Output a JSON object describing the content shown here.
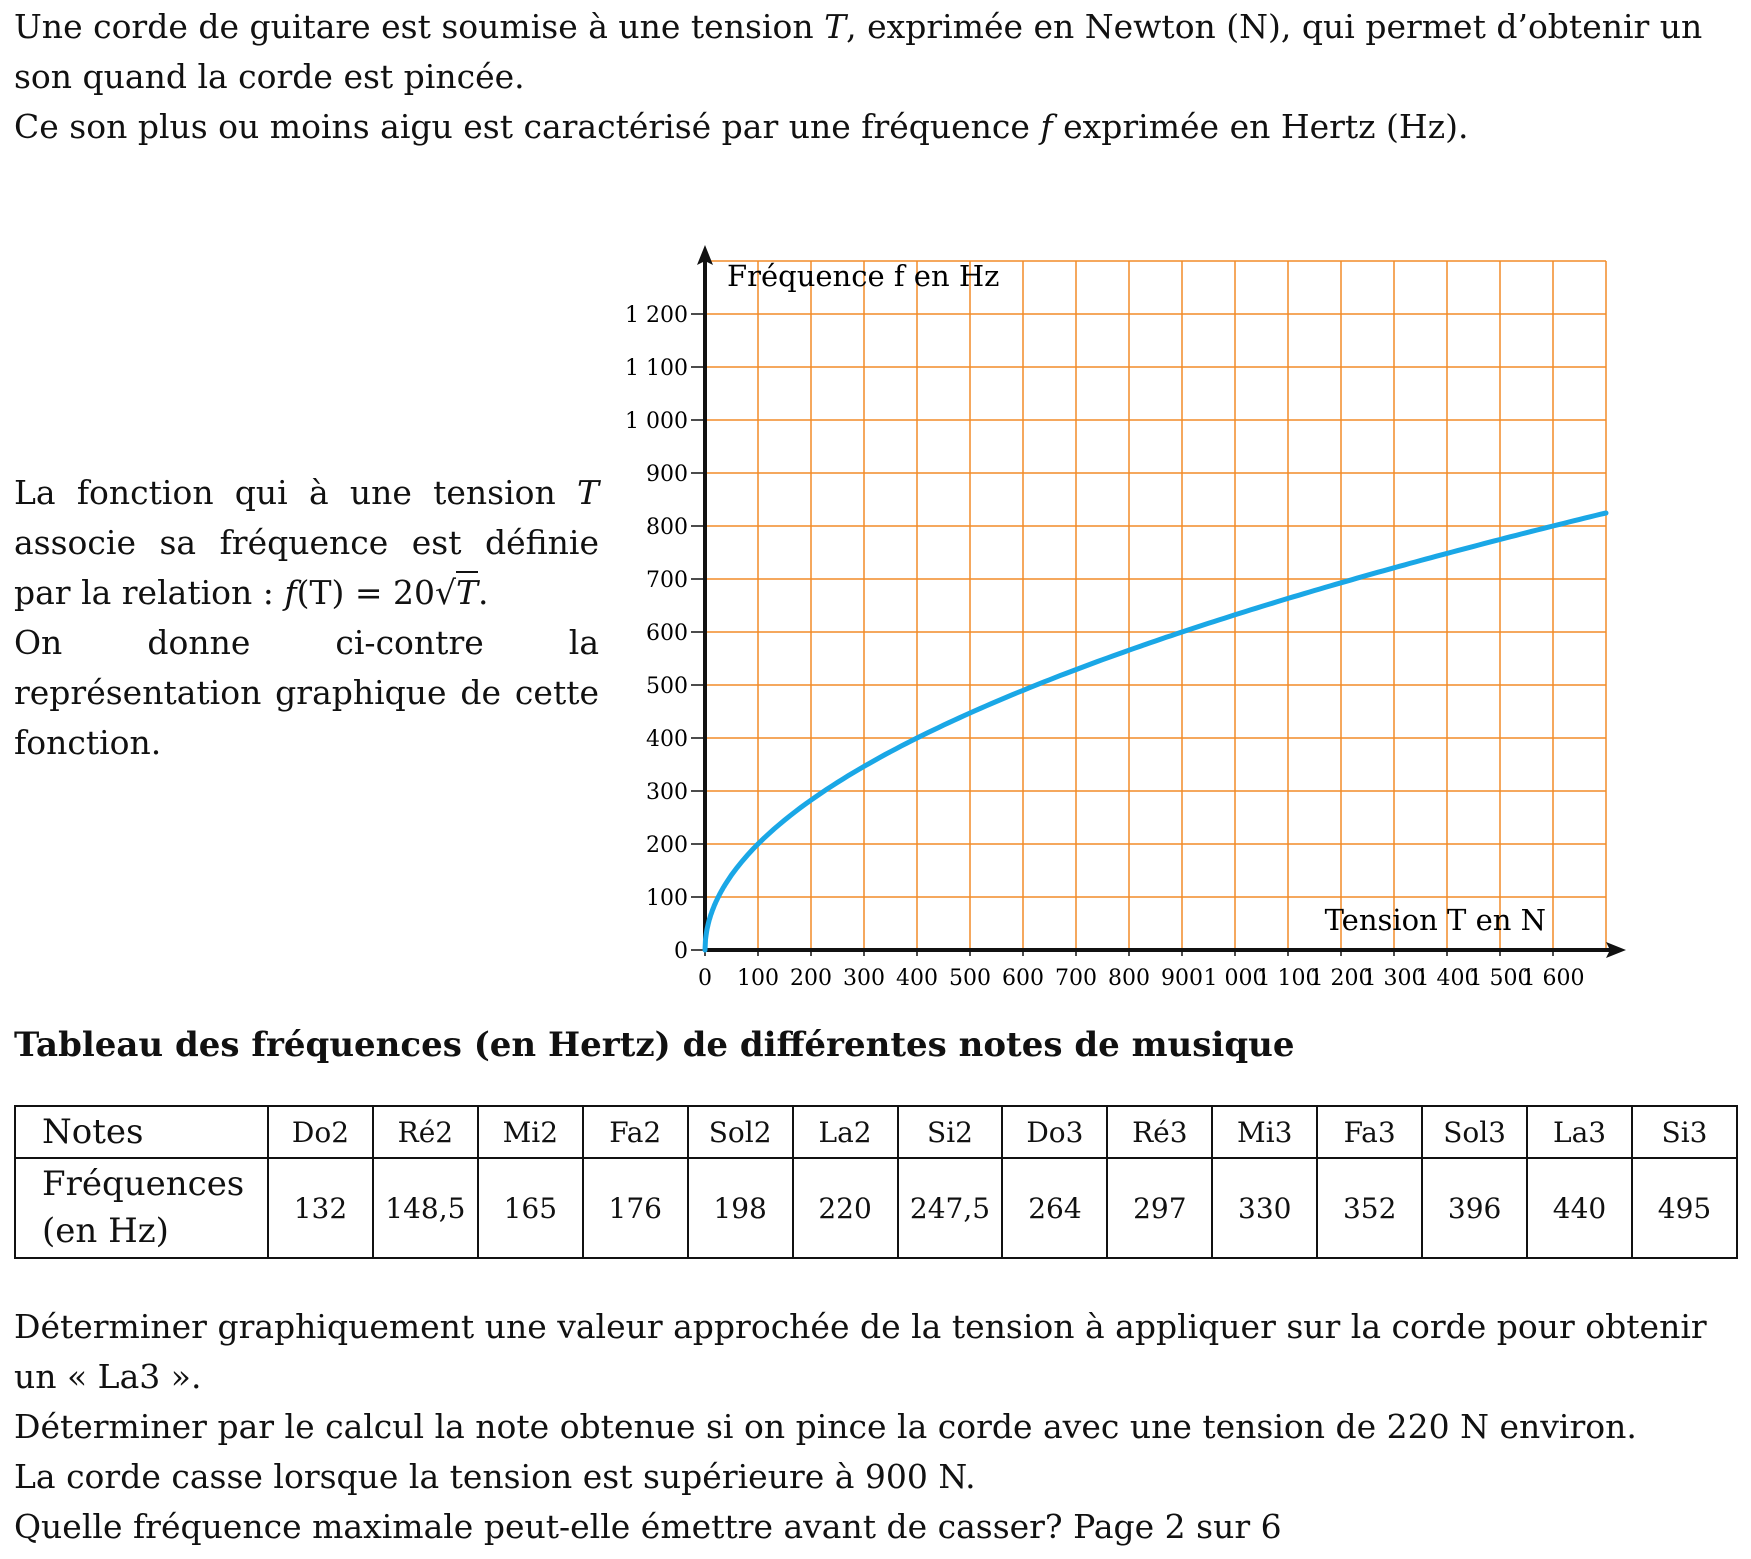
{
  "intro": {
    "line1_pre": "Une corde de guitare est soumise à une tension ",
    "line1_var": "T",
    "line1_post": ", exprimée en Newton (N), qui permet d’obtenir un son quand la corde est pincée.",
    "line2_pre": "Ce son plus ou moins aigu est caractérisé par une fréquence ",
    "line2_var": "f",
    "line2_post": " exprimée en Hertz (Hz)."
  },
  "side": {
    "p1": "La fonction qui à une tension ",
    "var_T": "T",
    "p2": " associe sa fréquence est définie par la relation : ",
    "formula_f": "f",
    "formula_mid": "(T) = 20",
    "formula_sqrt": "√",
    "formula_T": "T",
    "formula_end": ".",
    "p3": "On donne ci-contre la représentation graphique de cette fonction."
  },
  "chart_data": {
    "type": "line",
    "function": "f(T) = 20√T",
    "ylabel": "Fréquence f en Hz",
    "xlabel": "Tension T en N",
    "xlim": [
      0,
      1700
    ],
    "ylim": [
      0,
      1300
    ],
    "x_ticks": [
      "0",
      "100",
      "200",
      "300",
      "400",
      "500",
      "600",
      "700",
      "800",
      "900",
      "1 000",
      "1 100",
      "1 200",
      "1 300",
      "1 400",
      "1 500",
      "1 600"
    ],
    "y_ticks": [
      "0",
      "100",
      "200",
      "300",
      "400",
      "500",
      "600",
      "700",
      "800",
      "900",
      "1 000",
      "1 100",
      "1 200"
    ],
    "grid": true,
    "grid_color": "#f28c28",
    "curve_color": "#1aa7e6",
    "series": [
      {
        "x": [
          0,
          25,
          50,
          100,
          200,
          300,
          400,
          500,
          600,
          700,
          800,
          900,
          1000,
          1100,
          1200,
          1300,
          1400,
          1500,
          1600,
          1700
        ],
        "values": [
          0,
          100,
          141.4,
          200,
          282.8,
          346.4,
          400,
          447.2,
          489.9,
          529.2,
          565.7,
          600,
          632.5,
          663.3,
          692.8,
          721.1,
          748.3,
          774.6,
          800,
          824.6
        ]
      }
    ]
  },
  "table": {
    "title": "Tableau des fréquences (en Hertz) de différentes notes de musique",
    "row1_header": "Notes",
    "row2_header_line1": "Fréquences",
    "row2_header_line2": "(en Hz)",
    "notes": [
      "Do2",
      "Ré2",
      "Mi2",
      "Fa2",
      "Sol2",
      "La2",
      "Si2",
      "Do3",
      "Ré3",
      "Mi3",
      "Fa3",
      "Sol3",
      "La3",
      "Si3"
    ],
    "frequencies": [
      "132",
      "148,5",
      "165",
      "176",
      "198",
      "220",
      "247,5",
      "264",
      "297",
      "330",
      "352",
      "396",
      "440",
      "495"
    ]
  },
  "questions": {
    "q1": "Déterminer graphiquement une valeur approchée de la tension à appliquer sur la corde pour obtenir un « La3 ».",
    "q2": "Déterminer par le calcul la note obtenue si on pince la corde avec une tension de 220 N environ.",
    "q3": "La corde casse lorsque la tension est supérieure à 900 N.",
    "q4": "Quelle fréquence maximale peut-elle émettre avant de casser?",
    "page": " Page 2 sur 6"
  }
}
